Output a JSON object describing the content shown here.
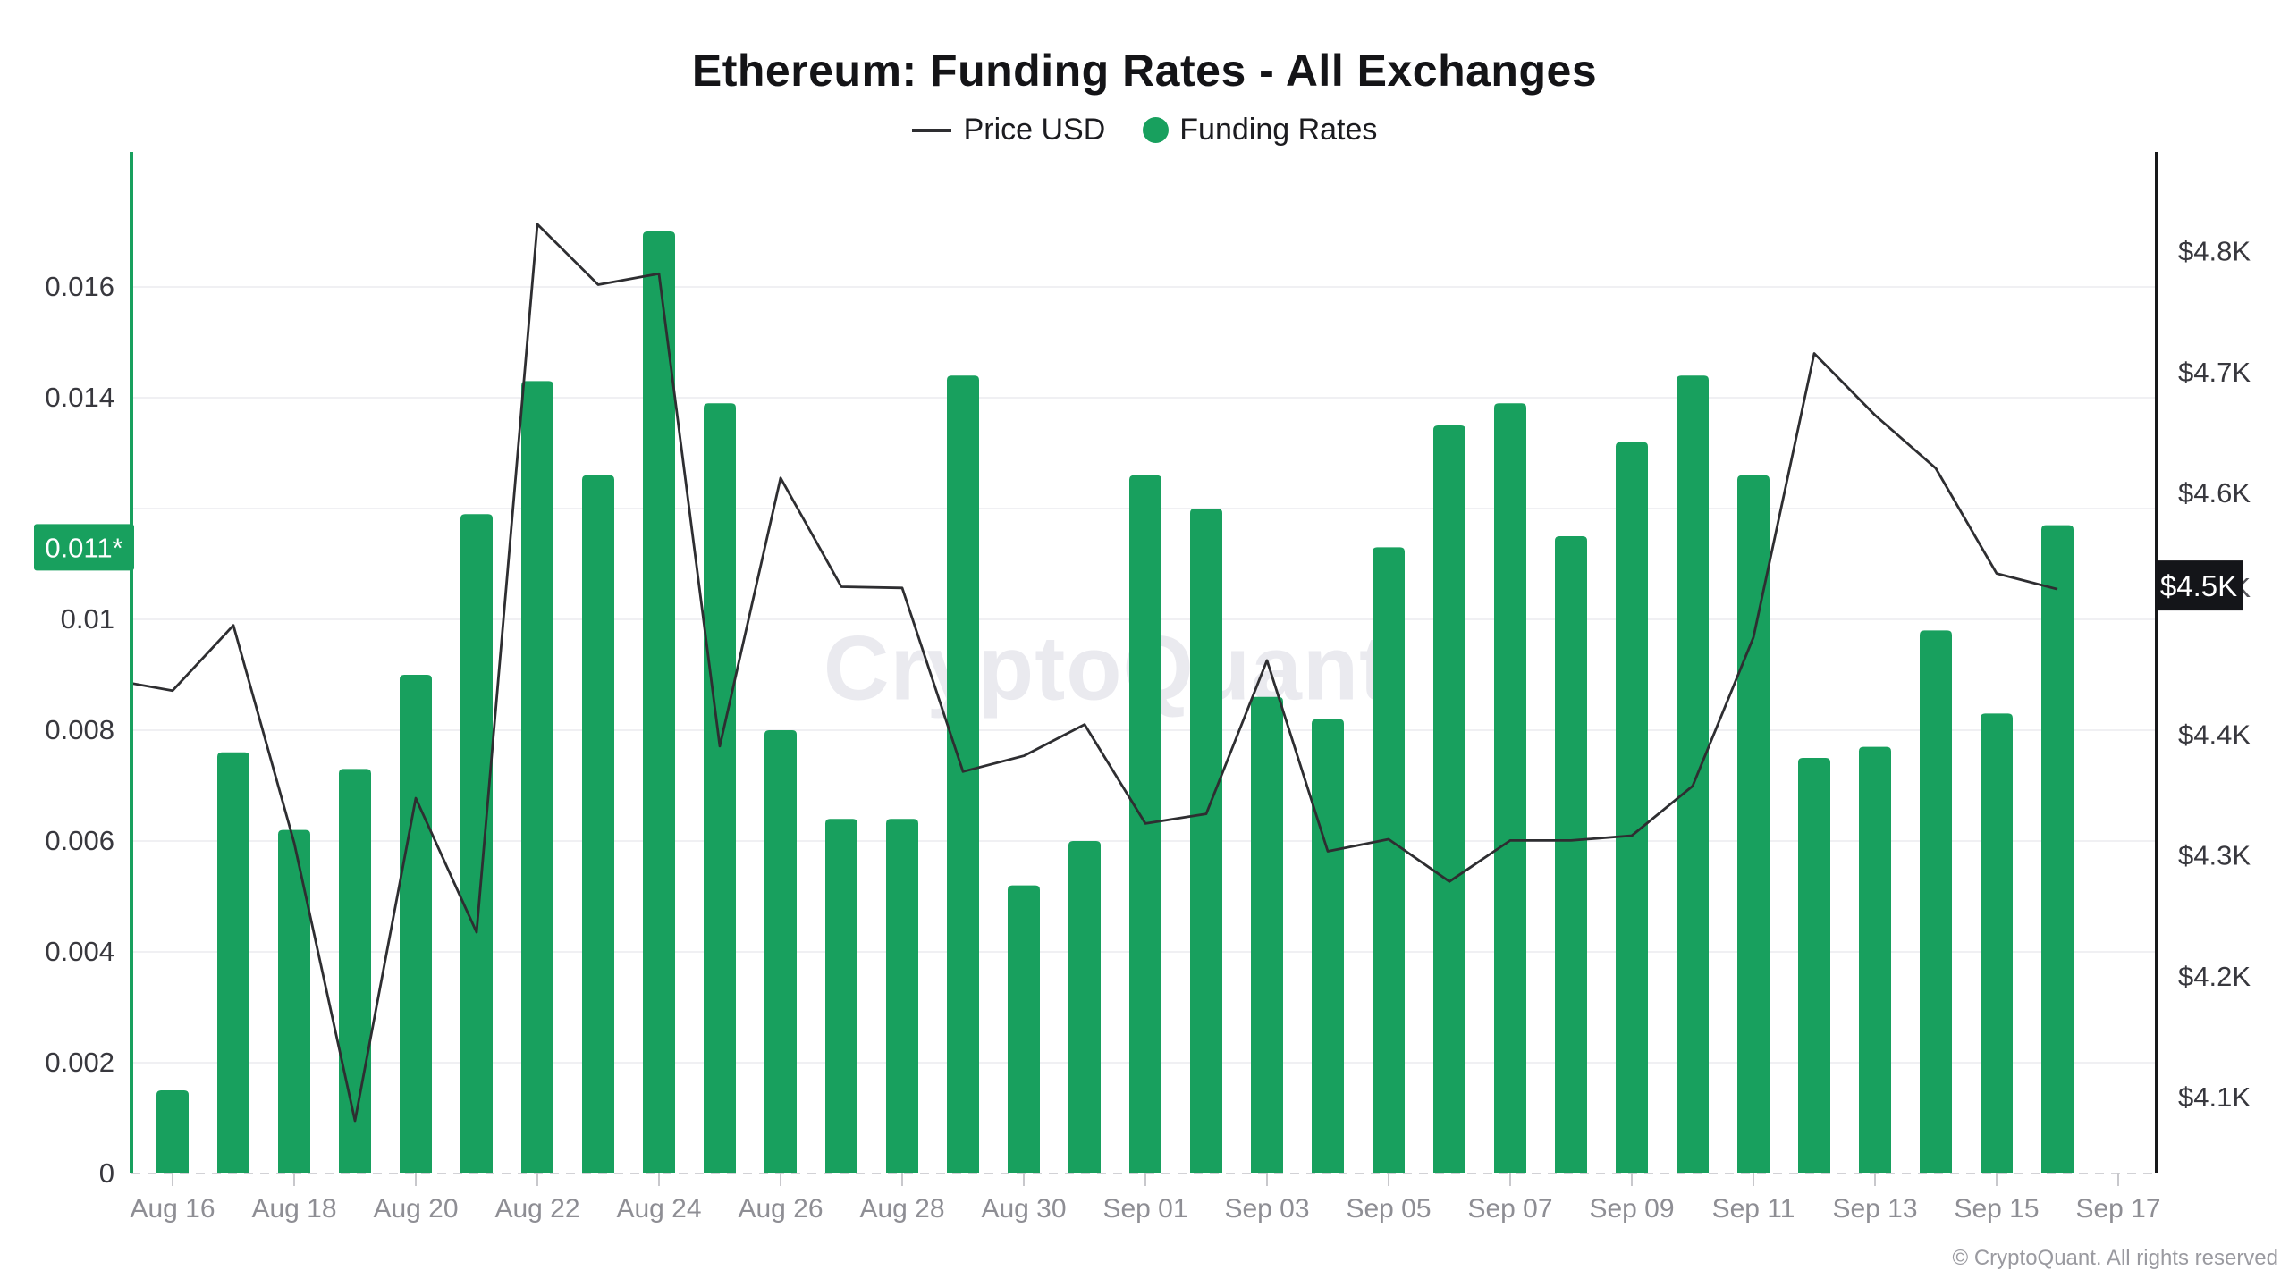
{
  "watermark": {
    "text": "CryptoQuant"
  },
  "footer": {
    "text": "© CryptoQuant. All rights reserved"
  },
  "colors": {
    "bar_green": "#18A05E",
    "price_line": "#2E2E31",
    "left_axis_line": "#18A05E",
    "right_axis_line": "#17181A",
    "grid": "#F0F0F3",
    "zero_line": "#D2D2D6",
    "x_tick": "#C8C8CC",
    "x_label": "#8E8E94",
    "y_label": "#38383E",
    "badge_green_bg": "#18A05E",
    "badge_black_bg": "#141519",
    "badge_text": "#FFFFFF",
    "hidden_tick_label": "#55555B"
  },
  "chart_data": {
    "type": "mixed",
    "title": "Ethereum: Funding Rates - All Exchanges",
    "legend_position": "top",
    "grid": true,
    "categories": [
      "Aug 15",
      "Aug 16",
      "Aug 17",
      "Aug 18",
      "Aug 19",
      "Aug 20",
      "Aug 21",
      "Aug 22",
      "Aug 23",
      "Aug 24",
      "Aug 25",
      "Aug 26",
      "Aug 27",
      "Aug 28",
      "Aug 29",
      "Aug 30",
      "Aug 31",
      "Sep 01",
      "Sep 02",
      "Sep 03",
      "Sep 04",
      "Sep 05",
      "Sep 06",
      "Sep 07",
      "Sep 08",
      "Sep 09",
      "Sep 10",
      "Sep 11",
      "Sep 12",
      "Sep 13",
      "Sep 14",
      "Sep 15",
      "Sep 16",
      "Sep 17"
    ],
    "series": [
      {
        "name": "Funding Rates",
        "type": "bar",
        "y_axis": "left",
        "color": "#18A05E",
        "points": [
          {
            "date": "Aug 16",
            "value": 0.0015
          },
          {
            "date": "Aug 17",
            "value": 0.0076
          },
          {
            "date": "Aug 18",
            "value": 0.0062
          },
          {
            "date": "Aug 19",
            "value": 0.0073
          },
          {
            "date": "Aug 20",
            "value": 0.009
          },
          {
            "date": "Aug 21",
            "value": 0.0119
          },
          {
            "date": "Aug 22",
            "value": 0.0143
          },
          {
            "date": "Aug 23",
            "value": 0.0126
          },
          {
            "date": "Aug 24",
            "value": 0.017
          },
          {
            "date": "Aug 25",
            "value": 0.0139
          },
          {
            "date": "Aug 26",
            "value": 0.008
          },
          {
            "date": "Aug 27",
            "value": 0.0064
          },
          {
            "date": "Aug 28",
            "value": 0.0064
          },
          {
            "date": "Aug 29",
            "value": 0.0144
          },
          {
            "date": "Aug 30",
            "value": 0.0052
          },
          {
            "date": "Aug 31",
            "value": 0.006
          },
          {
            "date": "Sep 01",
            "value": 0.0126
          },
          {
            "date": "Sep 02",
            "value": 0.012
          },
          {
            "date": "Sep 03",
            "value": 0.0086
          },
          {
            "date": "Sep 04",
            "value": 0.0082
          },
          {
            "date": "Sep 05",
            "value": 0.0113
          },
          {
            "date": "Sep 06",
            "value": 0.0135
          },
          {
            "date": "Sep 07",
            "value": 0.0139
          },
          {
            "date": "Sep 08",
            "value": 0.0115
          },
          {
            "date": "Sep 09",
            "value": 0.0132
          },
          {
            "date": "Sep 10",
            "value": 0.0144
          },
          {
            "date": "Sep 11",
            "value": 0.0126
          },
          {
            "date": "Sep 12",
            "value": 0.0075
          },
          {
            "date": "Sep 13",
            "value": 0.0077
          },
          {
            "date": "Sep 14",
            "value": 0.0098
          },
          {
            "date": "Sep 15",
            "value": 0.0083
          },
          {
            "date": "Sep 16",
            "value": 0.0117
          }
        ]
      },
      {
        "name": "Price USD",
        "type": "line",
        "y_axis": "right",
        "color": "#2E2E31",
        "points": [
          {
            "date": "Aug 15",
            "value": 4445
          },
          {
            "date": "Aug 16",
            "value": 4436
          },
          {
            "date": "Aug 17",
            "value": 4490
          },
          {
            "date": "Aug 18",
            "value": 4310
          },
          {
            "date": "Aug 19",
            "value": 4080
          },
          {
            "date": "Aug 20",
            "value": 4347
          },
          {
            "date": "Aug 21",
            "value": 4236
          },
          {
            "date": "Aug 22",
            "value": 4822
          },
          {
            "date": "Aug 23",
            "value": 4772
          },
          {
            "date": "Aug 24",
            "value": 4781
          },
          {
            "date": "Aug 25",
            "value": 4390
          },
          {
            "date": "Aug 26",
            "value": 4612
          },
          {
            "date": "Aug 27",
            "value": 4522
          },
          {
            "date": "Aug 28",
            "value": 4521
          },
          {
            "date": "Aug 29",
            "value": 4369
          },
          {
            "date": "Aug 30",
            "value": 4382
          },
          {
            "date": "Aug 31",
            "value": 4408
          },
          {
            "date": "Sep 01",
            "value": 4326
          },
          {
            "date": "Sep 02",
            "value": 4334
          },
          {
            "date": "Sep 03",
            "value": 4461
          },
          {
            "date": "Sep 04",
            "value": 4303
          },
          {
            "date": "Sep 05",
            "value": 4313
          },
          {
            "date": "Sep 06",
            "value": 4278
          },
          {
            "date": "Sep 07",
            "value": 4312
          },
          {
            "date": "Sep 08",
            "value": 4312
          },
          {
            "date": "Sep 09",
            "value": 4316
          },
          {
            "date": "Sep 10",
            "value": 4357
          },
          {
            "date": "Sep 11",
            "value": 4480
          },
          {
            "date": "Sep 12",
            "value": 4715
          },
          {
            "date": "Sep 13",
            "value": 4664
          },
          {
            "date": "Sep 14",
            "value": 4620
          },
          {
            "date": "Sep 15",
            "value": 4533
          },
          {
            "date": "Sep 16",
            "value": 4520
          }
        ]
      }
    ],
    "left_axis": {
      "name": "Funding Rates",
      "min": 0,
      "max": 0.018,
      "gridline_values": [
        0.002,
        0.004,
        0.006,
        0.008,
        0.01,
        0.012,
        0.014,
        0.016
      ],
      "tick_labels": [
        {
          "label": "0",
          "value": 0
        },
        {
          "label": "0.002",
          "value": 0.002
        },
        {
          "label": "0.004",
          "value": 0.004
        },
        {
          "label": "0.006",
          "value": 0.006
        },
        {
          "label": "0.008",
          "value": 0.008
        },
        {
          "label": "0.01",
          "value": 0.01
        },
        {
          "label": "0.014",
          "value": 0.014
        },
        {
          "label": "0.016",
          "value": 0.016
        }
      ],
      "current_badge": {
        "text": "0.011*",
        "value": 0.0113
      }
    },
    "right_axis": {
      "name": "Price USD",
      "min": 4036,
      "max": 4863,
      "tick_labels": [
        {
          "label": "$4.1K",
          "value": 4100
        },
        {
          "label": "$4.2K",
          "value": 4200
        },
        {
          "label": "$4.3K",
          "value": 4300
        },
        {
          "label": "$4.4K",
          "value": 4400
        },
        {
          "label": "$4.5K",
          "value": 4500
        },
        {
          "label": "$4.6K",
          "value": 4600
        },
        {
          "label": "$4.7K",
          "value": 4700
        },
        {
          "label": "$4.8K",
          "value": 4800
        }
      ],
      "current_badge": {
        "text": "$4.5K",
        "value": 4523
      }
    },
    "x_axis": {
      "tick_labels": [
        "Aug 16",
        "Aug 18",
        "Aug 20",
        "Aug 22",
        "Aug 24",
        "Aug 26",
        "Aug 28",
        "Aug 30",
        "Sep 01",
        "Sep 03",
        "Sep 05",
        "Sep 07",
        "Sep 09",
        "Sep 11",
        "Sep 13",
        "Sep 15",
        "Sep 17"
      ]
    }
  }
}
